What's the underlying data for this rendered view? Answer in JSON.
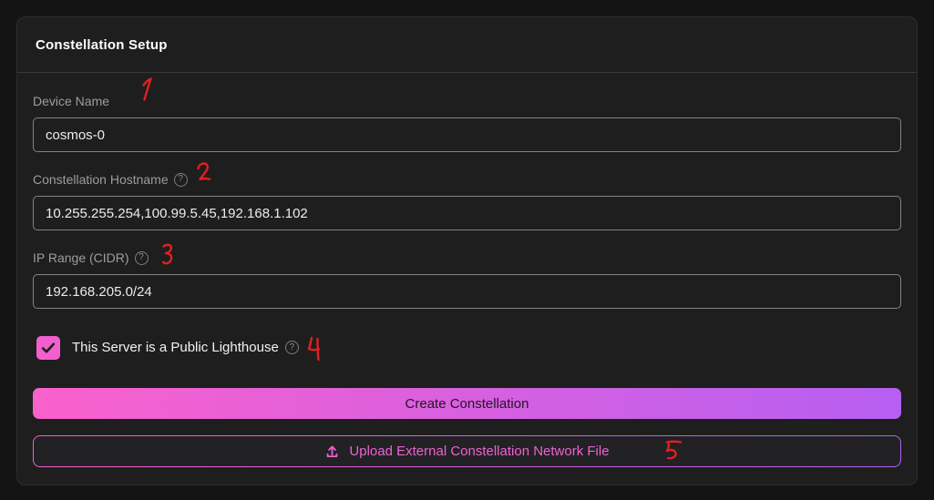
{
  "card": {
    "title": "Constellation Setup"
  },
  "form": {
    "fields": [
      {
        "label": "Device Name",
        "value": "cosmos-0",
        "has_help": false
      },
      {
        "label": "Constellation Hostname",
        "value": "10.255.255.254,100.99.5.45,192.168.1.102",
        "has_help": true
      },
      {
        "label": "IP Range (CIDR)",
        "value": "192.168.205.0/24",
        "has_help": true
      }
    ],
    "lighthouse_checkbox": {
      "label": "This Server is a Public Lighthouse",
      "checked": true,
      "has_help": true
    },
    "create_button_label": "Create Constellation",
    "upload_button_label": "Upload External Constellation Network File"
  },
  "icons": {
    "help_glyph": "?",
    "upload": "upload-arrow-icon"
  },
  "annotations": [
    {
      "digit": "1"
    },
    {
      "digit": "2"
    },
    {
      "digit": "3"
    },
    {
      "digit": "4"
    },
    {
      "digit": "5"
    }
  ],
  "colors": {
    "page_background": "#141414",
    "card_background": "#1e1e1e",
    "accent_pink": "#fa61cc",
    "accent_purple": "#b65ff2",
    "checkbox_pink": "#f25fce",
    "annotation_red": "#e2201e",
    "label_gray": "#9d9d9d"
  }
}
